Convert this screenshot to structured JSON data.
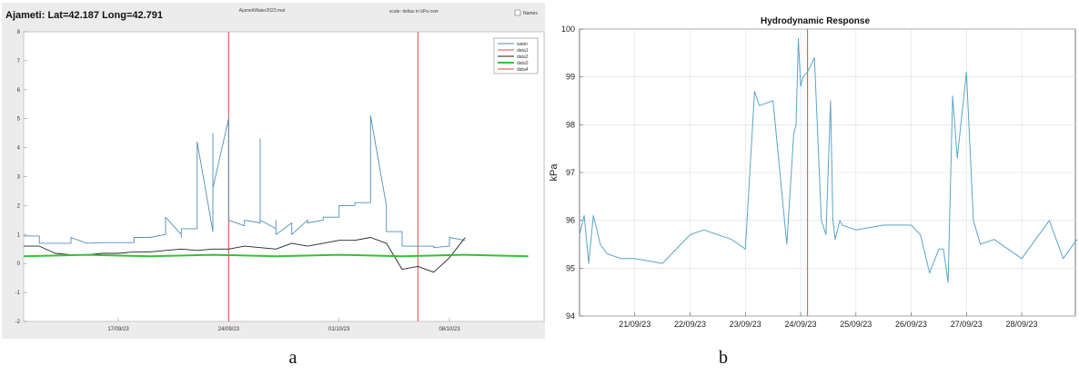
{
  "panel_labels": [
    "a",
    "b"
  ],
  "chart_data": [
    {
      "type": "line",
      "title": "Ajameti: Lat=42.187 Long=42.791",
      "file_label": "AjametiWater2023.mat",
      "note": "scale: deltas in kPa over",
      "checkbox_label": "Names",
      "xlabel": "",
      "ylabel": "",
      "x_ticks": [
        "17/09/23",
        "24/09/23",
        "01/10/23",
        "08/10/23"
      ],
      "ylim": [
        -2,
        8
      ],
      "y_ticks": [
        "-2",
        "-1",
        "0",
        "1",
        "2",
        "3",
        "4",
        "5",
        "6",
        "7",
        "8"
      ],
      "grid": false,
      "legend_position": "top-right",
      "vlines_dates": [
        "24/09/23",
        "06/10/23"
      ],
      "series": [
        {
          "name": "water",
          "color": "#4f8fb6",
          "x": [
            "11/09/23",
            "12/09/23",
            "12/09/23",
            "14/09/23",
            "14/09/23",
            "15/09/23",
            "15/09/23",
            "16/09/23",
            "17/09/23",
            "18/09/23",
            "18/09/23",
            "19/09/23",
            "20/09/23",
            "20/09/23",
            "21/09/23",
            "21/09/23",
            "21/09/23",
            "22/09/23",
            "22/09/23",
            "22/09/23",
            "22/09/23",
            "23/09/23",
            "23/09/23",
            "23/09/23",
            "23/09/23",
            "23/09/23",
            "24/09/23",
            "24/09/23",
            "24/09/23",
            "24/09/23",
            "25/09/23",
            "25/09/23",
            "26/09/23",
            "26/09/23",
            "26/09/23",
            "26/09/23",
            "27/09/23",
            "27/09/23",
            "27/09/23",
            "28/09/23",
            "28/09/23",
            "29/09/23",
            "29/09/23",
            "30/09/23",
            "30/09/23",
            "01/10/23",
            "01/10/23",
            "02/10/23",
            "02/10/23",
            "02/10/23",
            "03/10/23",
            "03/10/23",
            "03/10/23",
            "04/10/23",
            "04/10/23",
            "04/10/23",
            "04/10/23",
            "05/10/23",
            "05/10/23",
            "06/10/23",
            "06/10/23",
            "07/10/23",
            "07/10/23",
            "08/10/23",
            "08/10/23",
            "09/10/23"
          ],
          "y": [
            0.95,
            0.95,
            0.7,
            0.7,
            0.9,
            0.7,
            0.7,
            0.72,
            0.72,
            0.72,
            0.9,
            0.9,
            1.0,
            1.6,
            1.0,
            0.9,
            1.2,
            1.2,
            4.0,
            3.6,
            4.2,
            1.1,
            2.0,
            4.5,
            3.9,
            2.6,
            5.0,
            4.7,
            2.5,
            1.5,
            1.3,
            1.5,
            1.4,
            1.5,
            4.3,
            1.5,
            1.2,
            1.5,
            1.0,
            1.4,
            1.0,
            1.5,
            1.4,
            1.5,
            1.6,
            1.6,
            2.0,
            2.0,
            2.1,
            2.1,
            2.1,
            2.1,
            5.1,
            2.0,
            1.4,
            1.4,
            1.1,
            1.1,
            0.6,
            0.6,
            0.6,
            0.6,
            0.55,
            0.6,
            0.9,
            0.8
          ]
        },
        {
          "name": "data1",
          "color": "#d84a4a",
          "x": [],
          "y": []
        },
        {
          "name": "data2",
          "color": "#222222",
          "x": [
            "11/09/23",
            "12/09/23",
            "13/09/23",
            "14/09/23",
            "15/09/23",
            "16/09/23",
            "17/09/23",
            "18/09/23",
            "19/09/23",
            "20/09/23",
            "21/09/23",
            "22/09/23",
            "23/09/23",
            "24/09/23",
            "25/09/23",
            "26/09/23",
            "27/09/23",
            "28/09/23",
            "29/09/23",
            "30/09/23",
            "01/10/23",
            "02/10/23",
            "03/10/23",
            "04/10/23",
            "05/10/23",
            "06/10/23",
            "07/10/23",
            "08/10/23",
            "09/10/23"
          ],
          "y": [
            0.6,
            0.6,
            0.35,
            0.3,
            0.3,
            0.35,
            0.35,
            0.4,
            0.4,
            0.45,
            0.5,
            0.45,
            0.5,
            0.5,
            0.6,
            0.55,
            0.5,
            0.7,
            0.6,
            0.7,
            0.8,
            0.8,
            0.9,
            0.7,
            -0.2,
            -0.1,
            -0.3,
            0.2,
            0.9
          ]
        },
        {
          "name": "data3",
          "color": "#34c234",
          "x": [
            "11/09/23",
            "15/09/23",
            "19/09/23",
            "23/09/23",
            "27/09/23",
            "01/10/23",
            "05/10/23",
            "09/10/23",
            "13/10/23"
          ],
          "y": [
            0.25,
            0.3,
            0.25,
            0.3,
            0.25,
            0.3,
            0.25,
            0.3,
            0.25
          ]
        },
        {
          "name": "data4",
          "color": "#e04848",
          "x": [],
          "y": []
        }
      ]
    },
    {
      "type": "line",
      "title": "Hydrodynamic Response",
      "xlabel": "",
      "ylabel": "kPa",
      "x_ticks": [
        "21/09/23",
        "22/09/23",
        "23/09/23",
        "24/09/23",
        "25/09/23",
        "26/09/23",
        "27/09/23",
        "28/09/23"
      ],
      "ylim": [
        94,
        100
      ],
      "y_ticks": [
        "94",
        "95",
        "96",
        "97",
        "98",
        "99",
        "100"
      ],
      "grid": true,
      "vline_date": "24/09/23 03:00",
      "series": [
        {
          "color": "#5aa5c9",
          "x": [
            "20/09/23 00:00",
            "20/09/23 02:00",
            "20/09/23 04:00",
            "20/09/23 06:00",
            "20/09/23 09:00",
            "20/09/23 12:00",
            "20/09/23 18:00",
            "21/09/23 00:00",
            "21/09/23 12:00",
            "22/09/23 00:00",
            "22/09/23 06:00",
            "22/09/23 18:00",
            "23/09/23 00:00",
            "23/09/23 04:00",
            "23/09/23 06:00",
            "23/09/23 12:00",
            "23/09/23 18:00",
            "23/09/23 21:00",
            "23/09/23 22:00",
            "23/09/23 23:00",
            "24/09/23 00:00",
            "24/09/23 01:00",
            "24/09/23 03:00",
            "24/09/23 06:00",
            "24/09/23 09:00",
            "24/09/23 11:00",
            "24/09/23 13:00",
            "24/09/23 14:00",
            "24/09/23 15:00",
            "24/09/23 17:00",
            "24/09/23 18:00",
            "25/09/23 00:00",
            "25/09/23 12:00",
            "26/09/23 00:00",
            "26/09/23 04:00",
            "26/09/23 08:00",
            "26/09/23 12:00",
            "26/09/23 14:00",
            "26/09/23 16:00",
            "26/09/23 18:00",
            "26/09/23 20:00",
            "27/09/23 00:00",
            "27/09/23 03:00",
            "27/09/23 06:00",
            "27/09/23 12:00",
            "28/09/23 00:00",
            "28/09/23 12:00",
            "28/09/23 18:00",
            "29/09/23 00:00"
          ],
          "y": [
            95.7,
            96.1,
            95.1,
            96.1,
            95.5,
            95.3,
            95.2,
            95.2,
            95.1,
            95.7,
            95.8,
            95.6,
            95.4,
            98.7,
            98.4,
            98.5,
            95.5,
            97.8,
            98.0,
            99.8,
            98.8,
            99.0,
            99.1,
            99.4,
            96.0,
            95.7,
            98.5,
            96.0,
            95.6,
            96.0,
            95.9,
            95.8,
            95.9,
            95.9,
            95.7,
            94.9,
            95.4,
            95.4,
            94.7,
            98.6,
            97.3,
            99.1,
            96.0,
            95.5,
            95.6,
            95.2,
            96.0,
            95.2,
            95.6
          ]
        }
      ]
    }
  ]
}
